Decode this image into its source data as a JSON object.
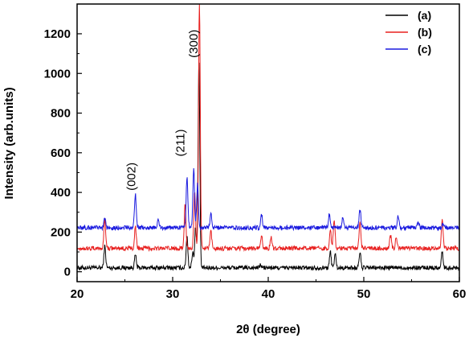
{
  "chart_data": {
    "type": "line",
    "xlabel": "2θ (degree)",
    "ylabel": "Intensity (arb.units)",
    "xlim": [
      20,
      60
    ],
    "ylim": [
      -50,
      1350
    ],
    "x_ticks": [
      20,
      30,
      40,
      50,
      60
    ],
    "y_ticks": [
      0,
      200,
      400,
      600,
      800,
      1000,
      1200
    ],
    "grid": false,
    "legend_position": "top-right",
    "series": [
      {
        "name": "(a)",
        "color": "#000000",
        "baseline": 20,
        "peaks": [
          {
            "x": 22.9,
            "y": 130
          },
          {
            "x": 26.1,
            "y": 85
          },
          {
            "x": 31.5,
            "y": 180
          },
          {
            "x": 32.1,
            "y": 100
          },
          {
            "x": 32.4,
            "y": 230
          },
          {
            "x": 32.75,
            "y": 1060
          },
          {
            "x": 39.2,
            "y": 35
          },
          {
            "x": 46.5,
            "y": 100
          },
          {
            "x": 47.0,
            "y": 90
          },
          {
            "x": 49.6,
            "y": 100
          },
          {
            "x": 58.2,
            "y": 100
          }
        ]
      },
      {
        "name": "(b)",
        "color": "#e8201f",
        "baseline": 118,
        "peaks": [
          {
            "x": 22.9,
            "y": 270
          },
          {
            "x": 26.1,
            "y": 230
          },
          {
            "x": 31.3,
            "y": 340
          },
          {
            "x": 32.3,
            "y": 410
          },
          {
            "x": 32.8,
            "y": 1350
          },
          {
            "x": 34.0,
            "y": 200
          },
          {
            "x": 39.3,
            "y": 180
          },
          {
            "x": 40.3,
            "y": 175
          },
          {
            "x": 46.5,
            "y": 210
          },
          {
            "x": 46.9,
            "y": 260
          },
          {
            "x": 49.6,
            "y": 250
          },
          {
            "x": 52.8,
            "y": 185
          },
          {
            "x": 53.4,
            "y": 175
          },
          {
            "x": 58.2,
            "y": 265
          }
        ]
      },
      {
        "name": "(c)",
        "color": "#1a1adf",
        "baseline": 222,
        "peaks": [
          {
            "x": 22.9,
            "y": 265
          },
          {
            "x": 26.1,
            "y": 390
          },
          {
            "x": 28.5,
            "y": 260
          },
          {
            "x": 31.5,
            "y": 480
          },
          {
            "x": 32.2,
            "y": 515
          },
          {
            "x": 32.6,
            "y": 440
          },
          {
            "x": 34.0,
            "y": 290
          },
          {
            "x": 39.3,
            "y": 290
          },
          {
            "x": 46.4,
            "y": 290
          },
          {
            "x": 47.8,
            "y": 270
          },
          {
            "x": 49.6,
            "y": 315
          },
          {
            "x": 53.6,
            "y": 280
          },
          {
            "x": 55.7,
            "y": 245
          },
          {
            "x": 58.3,
            "y": 245
          }
        ]
      }
    ],
    "annotations": [
      {
        "text": "(002)",
        "x": 26.1,
        "y": 480
      },
      {
        "text": "(211)",
        "x": 31.2,
        "y": 650
      },
      {
        "text": "(300)",
        "x": 32.6,
        "y": 1150
      }
    ]
  }
}
